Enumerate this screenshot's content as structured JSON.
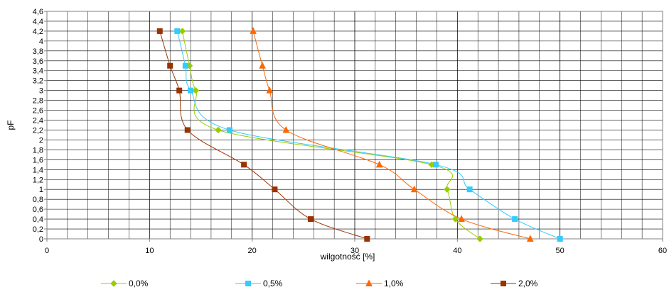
{
  "chart_data": {
    "type": "line",
    "title": "",
    "xlabel": "wilgotność [%]",
    "ylabel": "pF",
    "xlim": [
      0,
      60
    ],
    "ylim": [
      0,
      4.6
    ],
    "x_ticks": [
      "0",
      "10",
      "20",
      "30",
      "40",
      "50",
      "60"
    ],
    "y_ticks": [
      "0",
      "0,2",
      "0,4",
      "0,6",
      "0,8",
      "1",
      "1,2",
      "1,4",
      "1,6",
      "1,8",
      "2",
      "2,2",
      "2,4",
      "2,6",
      "2,8",
      "3",
      "3,2",
      "3,4",
      "3,6",
      "3,8",
      "4",
      "4,2",
      "4,4",
      "4,6"
    ],
    "grid": true,
    "legend_position": "bottom",
    "series": [
      {
        "name": "0,0%",
        "color": "#99CC00",
        "marker": "diamond",
        "points": [
          {
            "x": 13.2,
            "y": 4.2
          },
          {
            "x": 13.9,
            "y": 3.5
          },
          {
            "x": 14.5,
            "y": 3.0
          },
          {
            "x": 16.7,
            "y": 2.2
          },
          {
            "x": 37.5,
            "y": 1.5
          },
          {
            "x": 39.0,
            "y": 1.0
          },
          {
            "x": 39.8,
            "y": 0.4
          },
          {
            "x": 42.2,
            "y": 0.0
          }
        ]
      },
      {
        "name": "0,5%",
        "color": "#33CCFF",
        "marker": "square",
        "points": [
          {
            "x": 12.7,
            "y": 4.2
          },
          {
            "x": 13.5,
            "y": 3.5
          },
          {
            "x": 14.0,
            "y": 3.0
          },
          {
            "x": 17.8,
            "y": 2.2
          },
          {
            "x": 37.9,
            "y": 1.5
          },
          {
            "x": 41.2,
            "y": 1.0
          },
          {
            "x": 45.6,
            "y": 0.4
          },
          {
            "x": 50.0,
            "y": 0.0
          }
        ]
      },
      {
        "name": "1,0%",
        "color": "#FF6600",
        "marker": "triangle",
        "points": [
          {
            "x": 20.1,
            "y": 4.2
          },
          {
            "x": 21.0,
            "y": 3.5
          },
          {
            "x": 21.7,
            "y": 3.0
          },
          {
            "x": 23.3,
            "y": 2.2
          },
          {
            "x": 32.4,
            "y": 1.5
          },
          {
            "x": 35.8,
            "y": 1.0
          },
          {
            "x": 40.4,
            "y": 0.4
          },
          {
            "x": 47.1,
            "y": 0.0
          }
        ]
      },
      {
        "name": "2,0%",
        "color": "#993300",
        "marker": "square",
        "points": [
          {
            "x": 11.0,
            "y": 4.2
          },
          {
            "x": 12.0,
            "y": 3.5
          },
          {
            "x": 12.9,
            "y": 3.0
          },
          {
            "x": 13.7,
            "y": 2.2
          },
          {
            "x": 19.2,
            "y": 1.5
          },
          {
            "x": 22.2,
            "y": 1.0
          },
          {
            "x": 25.7,
            "y": 0.4
          },
          {
            "x": 31.2,
            "y": 0.0
          }
        ]
      }
    ]
  }
}
